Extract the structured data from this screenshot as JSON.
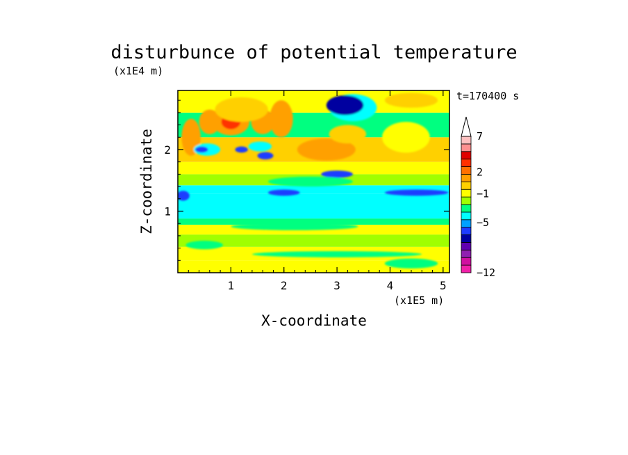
{
  "chart_data": {
    "type": "heatmap",
    "title": "disturbunce of potential temperature",
    "xlabel": "X-coordinate",
    "ylabel": "Z-coordinate",
    "x_scale_label": "(x1E5 m)",
    "y_scale_label": "(x1E4 m)",
    "time_label": "t=170400 s",
    "xlim": [
      0,
      5.12
    ],
    "ylim": [
      0,
      2.96
    ],
    "x_ticks": [
      {
        "value": 1,
        "label": "1"
      },
      {
        "value": 2,
        "label": "2"
      },
      {
        "value": 3,
        "label": "3"
      },
      {
        "value": 4,
        "label": "4"
      },
      {
        "value": 5,
        "label": "5"
      }
    ],
    "y_ticks": [
      {
        "value": 1,
        "label": "1"
      },
      {
        "value": 2,
        "label": "2"
      }
    ],
    "colorbar": {
      "levels_bottom_to_top": [
        "#f020a8",
        "#d010a0",
        "#9020b0",
        "#6000b0",
        "#0000a0",
        "#1e3cff",
        "#00a0ff",
        "#00ffff",
        "#00ff80",
        "#a0ff00",
        "#ffff00",
        "#ffd000",
        "#ffa000",
        "#ff7000",
        "#ff3000",
        "#e00000",
        "#ff9090",
        "#ffc0c0"
      ],
      "labels": [
        {
          "value": -12,
          "label": "−12"
        },
        {
          "value": -5,
          "label": "−5"
        },
        {
          "value": -1,
          "label": "−1"
        },
        {
          "value": 2,
          "label": "2"
        },
        {
          "value": 7,
          "label": "7"
        }
      ],
      "extend": "max"
    },
    "field": {
      "description_levels": "Band colors z from bottom to top",
      "bands": [
        {
          "z": [
            0.0,
            0.2
          ],
          "color": "#ffff00"
        },
        {
          "z": [
            0.2,
            0.42
          ],
          "color": "#ffff00"
        },
        {
          "z": [
            0.42,
            0.62
          ],
          "color": "#a0ff00"
        },
        {
          "z": [
            0.62,
            0.78
          ],
          "color": "#ffff00"
        },
        {
          "z": [
            0.78,
            0.88
          ],
          "color": "#00ff80"
        },
        {
          "z": [
            0.88,
            1.28
          ],
          "color": "#00ffff"
        },
        {
          "z": [
            1.28,
            1.42
          ],
          "color": "#00ffff"
        },
        {
          "z": [
            1.42,
            1.6
          ],
          "color": "#a0ff00"
        },
        {
          "z": [
            1.6,
            1.8
          ],
          "color": "#ffff00"
        },
        {
          "z": [
            1.8,
            2.2
          ],
          "color": "#ffd000"
        },
        {
          "z": [
            2.2,
            2.6
          ],
          "color": "#00ff80"
        },
        {
          "z": [
            2.6,
            2.96
          ],
          "color": "#ffff00"
        }
      ],
      "blobs": [
        {
          "x": 1.0,
          "z": 2.45,
          "rx": 0.35,
          "rz": 0.22,
          "color": "#ffa000"
        },
        {
          "x": 1.0,
          "z": 2.45,
          "rx": 0.18,
          "rz": 0.12,
          "color": "#ff3000"
        },
        {
          "x": 0.6,
          "z": 2.45,
          "rx": 0.2,
          "rz": 0.2,
          "color": "#ffa000"
        },
        {
          "x": 0.25,
          "z": 2.2,
          "rx": 0.18,
          "rz": 0.3,
          "color": "#ffa000"
        },
        {
          "x": 1.6,
          "z": 2.45,
          "rx": 0.22,
          "rz": 0.2,
          "color": "#ffa000"
        },
        {
          "x": 1.95,
          "z": 2.5,
          "rx": 0.22,
          "rz": 0.3,
          "color": "#ffa000"
        },
        {
          "x": 2.8,
          "z": 2.0,
          "rx": 0.55,
          "rz": 0.18,
          "color": "#ffa000"
        },
        {
          "x": 3.2,
          "z": 2.25,
          "rx": 0.35,
          "rz": 0.15,
          "color": "#ffd000"
        },
        {
          "x": 3.3,
          "z": 2.68,
          "rx": 0.45,
          "rz": 0.22,
          "color": "#00ffff"
        },
        {
          "x": 3.15,
          "z": 2.72,
          "rx": 0.35,
          "rz": 0.16,
          "color": "#0000a0"
        },
        {
          "x": 1.55,
          "z": 2.05,
          "rx": 0.22,
          "rz": 0.08,
          "color": "#00ffff"
        },
        {
          "x": 0.55,
          "z": 2.0,
          "rx": 0.25,
          "rz": 0.1,
          "color": "#00ffff"
        },
        {
          "x": 1.65,
          "z": 1.9,
          "rx": 0.15,
          "rz": 0.06,
          "color": "#1e3cff"
        },
        {
          "x": 0.45,
          "z": 2.0,
          "rx": 0.12,
          "rz": 0.05,
          "color": "#1e3cff"
        },
        {
          "x": 1.2,
          "z": 2.0,
          "rx": 0.12,
          "rz": 0.05,
          "color": "#1e3cff"
        },
        {
          "x": 3.0,
          "z": 1.6,
          "rx": 0.3,
          "rz": 0.06,
          "color": "#1e3cff"
        },
        {
          "x": 0.1,
          "z": 1.25,
          "rx": 0.12,
          "rz": 0.08,
          "color": "#1e3cff"
        },
        {
          "x": 2.0,
          "z": 1.3,
          "rx": 0.3,
          "rz": 0.05,
          "color": "#1e3cff"
        },
        {
          "x": 1.2,
          "z": 2.65,
          "rx": 0.5,
          "rz": 0.2,
          "color": "#ffd000"
        },
        {
          "x": 4.4,
          "z": 2.8,
          "rx": 0.5,
          "rz": 0.12,
          "color": "#ffd000"
        },
        {
          "x": 4.3,
          "z": 2.2,
          "rx": 0.45,
          "rz": 0.25,
          "color": "#ffff00"
        },
        {
          "x": 2.5,
          "z": 1.48,
          "rx": 0.8,
          "rz": 0.08,
          "color": "#00ff80"
        },
        {
          "x": 4.5,
          "z": 1.3,
          "rx": 0.6,
          "rz": 0.05,
          "color": "#1e3cff"
        },
        {
          "x": 2.2,
          "z": 0.75,
          "rx": 1.2,
          "rz": 0.06,
          "color": "#00ff80"
        },
        {
          "x": 3.0,
          "z": 0.3,
          "rx": 1.6,
          "rz": 0.05,
          "color": "#00ff80"
        },
        {
          "x": 4.4,
          "z": 0.15,
          "rx": 0.5,
          "rz": 0.08,
          "color": "#00ff80"
        },
        {
          "x": 0.5,
          "z": 0.45,
          "rx": 0.35,
          "rz": 0.07,
          "color": "#00ff80"
        }
      ]
    }
  }
}
